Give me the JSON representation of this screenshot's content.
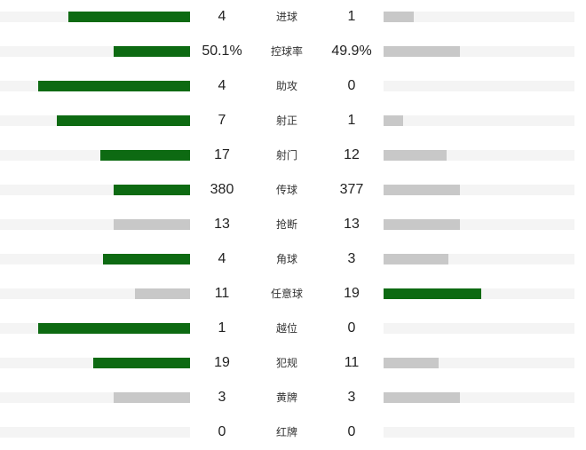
{
  "colors": {
    "leading": "#0d6a12",
    "trailing": "#c8c8c8",
    "track": "#f4f4f4"
  },
  "stats": [
    {
      "label": "进球",
      "left": "4",
      "right": "1",
      "left_fraction": 0.64,
      "right_fraction": 0.16,
      "leader": "left"
    },
    {
      "label": "控球率",
      "left": "50.1%",
      "right": "49.9%",
      "left_fraction": 0.4,
      "right_fraction": 0.4,
      "leader": "left"
    },
    {
      "label": "助攻",
      "left": "4",
      "right": "0",
      "left_fraction": 0.8,
      "right_fraction": 0.0,
      "leader": "left"
    },
    {
      "label": "射正",
      "left": "7",
      "right": "1",
      "left_fraction": 0.7,
      "right_fraction": 0.1,
      "leader": "left"
    },
    {
      "label": "射门",
      "left": "17",
      "right": "12",
      "left_fraction": 0.47,
      "right_fraction": 0.33,
      "leader": "left"
    },
    {
      "label": "传球",
      "left": "380",
      "right": "377",
      "left_fraction": 0.4,
      "right_fraction": 0.4,
      "leader": "left"
    },
    {
      "label": "抢断",
      "left": "13",
      "right": "13",
      "left_fraction": 0.4,
      "right_fraction": 0.4,
      "leader": "none"
    },
    {
      "label": "角球",
      "left": "4",
      "right": "3",
      "left_fraction": 0.46,
      "right_fraction": 0.34,
      "leader": "left"
    },
    {
      "label": "任意球",
      "left": "11",
      "right": "19",
      "left_fraction": 0.29,
      "right_fraction": 0.51,
      "leader": "right"
    },
    {
      "label": "越位",
      "left": "1",
      "right": "0",
      "left_fraction": 0.8,
      "right_fraction": 0.0,
      "leader": "left"
    },
    {
      "label": "犯规",
      "left": "19",
      "right": "11",
      "left_fraction": 0.51,
      "right_fraction": 0.29,
      "leader": "left"
    },
    {
      "label": "黄牌",
      "left": "3",
      "right": "3",
      "left_fraction": 0.4,
      "right_fraction": 0.4,
      "leader": "none"
    },
    {
      "label": "红牌",
      "left": "0",
      "right": "0",
      "left_fraction": 0.0,
      "right_fraction": 0.0,
      "leader": "none"
    }
  ]
}
